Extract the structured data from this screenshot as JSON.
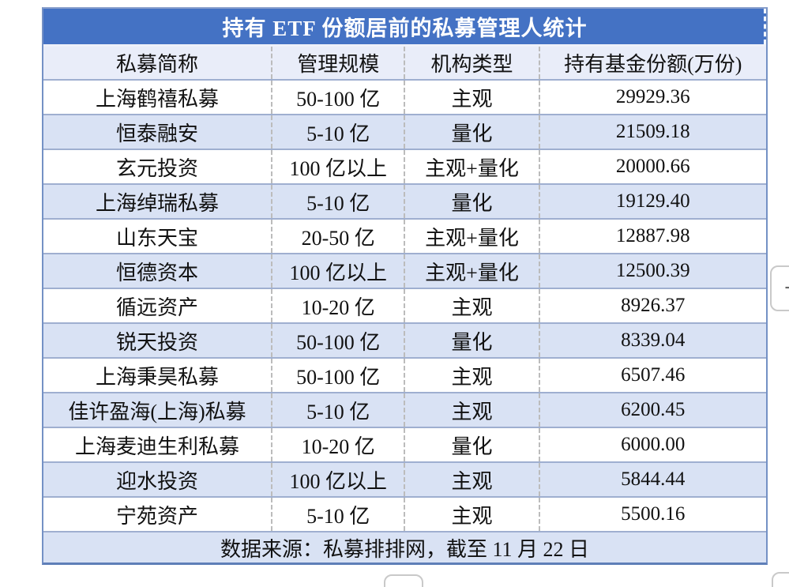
{
  "table": {
    "title": "持有 ETF 份额居前的私募管理人统计",
    "columns": [
      "私募简称",
      "管理规模",
      "机构类型",
      "持有基金份额(万份)"
    ],
    "rows": [
      {
        "name": "上海鹤禧私募",
        "scale": "50-100 亿",
        "type": "主观",
        "shares": "29929.36"
      },
      {
        "name": "恒泰融安",
        "scale": "5-10 亿",
        "type": "量化",
        "shares": "21509.18"
      },
      {
        "name": "玄元投资",
        "scale": "100 亿以上",
        "type": "主观+量化",
        "shares": "20000.66"
      },
      {
        "name": "上海绰瑞私募",
        "scale": "5-10 亿",
        "type": "量化",
        "shares": "19129.40"
      },
      {
        "name": "山东天宝",
        "scale": "20-50 亿",
        "type": "主观+量化",
        "shares": "12887.98"
      },
      {
        "name": "恒德资本",
        "scale": "100 亿以上",
        "type": "主观+量化",
        "shares": "12500.39"
      },
      {
        "name": "循远资产",
        "scale": "10-20 亿",
        "type": "主观",
        "shares": "8926.37"
      },
      {
        "name": "锐天投资",
        "scale": "50-100 亿",
        "type": "量化",
        "shares": "8339.04"
      },
      {
        "name": "上海秉昊私募",
        "scale": "50-100 亿",
        "type": "主观",
        "shares": "6507.46"
      },
      {
        "name": "佳许盈海(上海)私募",
        "scale": "5-10 亿",
        "type": "主观",
        "shares": "6200.45"
      },
      {
        "name": "上海麦迪生利私募",
        "scale": "10-20 亿",
        "type": "量化",
        "shares": "6000.00"
      },
      {
        "name": "迎水投资",
        "scale": "100 亿以上",
        "type": "主观",
        "shares": "5844.44"
      },
      {
        "name": "宁苑资产",
        "scale": "5-10 亿",
        "type": "主观",
        "shares": "5500.16"
      }
    ],
    "footer": "数据来源：私募排排网，截至 11 月 22 日",
    "colors": {
      "title_bg": "#4472c4",
      "title_text": "#ffffff",
      "header_bg": "#e9edf9",
      "alt_row_bg": "#d9e2f4",
      "outer_border": "#7491c5",
      "row_line": "#9fafd0",
      "column_dash": "#bcbcbc"
    }
  },
  "edge_controls": {
    "zoom_out_label": "−",
    "zoom_in_label": "+",
    "corner_label": ""
  },
  "chart_data": {
    "type": "table",
    "title": "持有 ETF 份额居前的私募管理人统计",
    "columns": [
      "私募简称",
      "管理规模",
      "机构类型",
      "持有基金份额(万份)"
    ],
    "rows": [
      [
        "上海鹤禧私募",
        "50-100 亿",
        "主观",
        29929.36
      ],
      [
        "恒泰融安",
        "5-10 亿",
        "量化",
        21509.18
      ],
      [
        "玄元投资",
        "100 亿以上",
        "主观+量化",
        20000.66
      ],
      [
        "上海绰瑞私募",
        "5-10 亿",
        "量化",
        19129.4
      ],
      [
        "山东天宝",
        "20-50 亿",
        "主观+量化",
        12887.98
      ],
      [
        "恒德资本",
        "100 亿以上",
        "主观+量化",
        12500.39
      ],
      [
        "循远资产",
        "10-20 亿",
        "主观",
        8926.37
      ],
      [
        "锐天投资",
        "50-100 亿",
        "量化",
        8339.04
      ],
      [
        "上海秉昊私募",
        "50-100 亿",
        "主观",
        6507.46
      ],
      [
        "佳许盈海(上海)私募",
        "5-10 亿",
        "主观",
        6200.45
      ],
      [
        "上海麦迪生利私募",
        "10-20 亿",
        "量化",
        6000.0
      ],
      [
        "迎水投资",
        "100 亿以上",
        "主观",
        5844.44
      ],
      [
        "宁苑资产",
        "5-10 亿",
        "主观",
        5500.16
      ]
    ],
    "footnote": "数据来源：私募排排网，截至 11 月 22 日"
  }
}
